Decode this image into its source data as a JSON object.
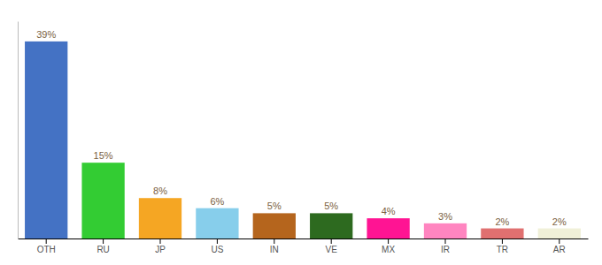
{
  "chart_data": {
    "type": "bar",
    "categories": [
      "OTH",
      "RU",
      "JP",
      "US",
      "IN",
      "VE",
      "MX",
      "IR",
      "TR",
      "AR"
    ],
    "values": [
      39,
      15,
      8,
      6,
      5,
      5,
      4,
      3,
      2,
      2
    ],
    "value_labels": [
      "39%",
      "15%",
      "8%",
      "6%",
      "5%",
      "5%",
      "4%",
      "3%",
      "2%",
      "2%"
    ],
    "colors": [
      "#4472c4",
      "#33cc33",
      "#f5a623",
      "#87ceeb",
      "#b5651d",
      "#2d6a1f",
      "#ff1493",
      "#ff85c0",
      "#e07070",
      "#f0f0d8"
    ],
    "ylim": [
      0,
      43
    ],
    "data_labels": true,
    "tick_labels": "x",
    "grid": false
  }
}
